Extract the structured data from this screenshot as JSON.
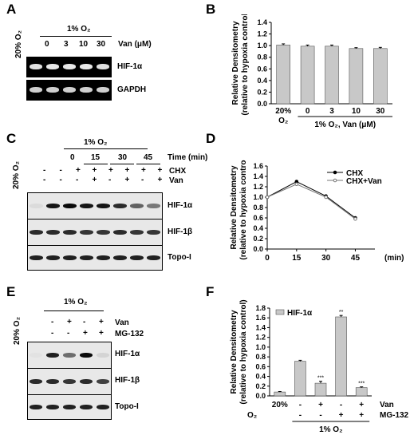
{
  "panels": {
    "A": {
      "letter": "A",
      "o2_20": "20% O₂",
      "o2_1": "1% O₂",
      "lane_values": [
        "0",
        "3",
        "10",
        "30"
      ],
      "treatment_label": "Van (μM)",
      "bands": [
        "HIF-1α",
        "GAPDH"
      ]
    },
    "B": {
      "letter": "B",
      "chart_data": {
        "type": "bar",
        "categories": [
          "20% O₂",
          "0",
          "3",
          "10",
          "30"
        ],
        "values": [
          1.01,
          0.99,
          0.99,
          0.95,
          0.95
        ],
        "errors": [
          0.02,
          0.02,
          0.02,
          0.015,
          0.02
        ],
        "ylabel": "Relative Densitometry (relative to hypoxia control)",
        "group_label": "1% O₂, Van (μM)",
        "ylim": [
          0,
          1.4
        ],
        "yticks": [
          "0.0",
          "0.2",
          "0.4",
          "0.6",
          "0.8",
          "1.0",
          "1.2",
          "1.4"
        ]
      }
    },
    "C": {
      "letter": "C",
      "o2_20": "20% O₂",
      "o2_1": "1% O₂",
      "time_values": [
        "0",
        "15",
        "30",
        "45"
      ],
      "time_label": "Time (min)",
      "row1_label": "CHX",
      "row2_label": "Van",
      "row1_signs": [
        "-",
        "-",
        "+",
        "+",
        "+",
        "+",
        "+",
        "+"
      ],
      "row2_signs": [
        "-",
        "-",
        "-",
        "+",
        "-",
        "+",
        "-",
        "+"
      ],
      "bands": [
        "HIF-1α",
        "HIF-1β",
        "Topo-I"
      ]
    },
    "D": {
      "letter": "D",
      "chart_data": {
        "type": "line",
        "x": [
          0,
          15,
          30,
          45
        ],
        "series": [
          {
            "name": "CHX",
            "values": [
              1.0,
              1.3,
              1.02,
              0.6
            ]
          },
          {
            "name": "CHX+Van",
            "values": [
              1.0,
              1.25,
              1.0,
              0.58
            ]
          }
        ],
        "ylabel": "Relative Densitometry (relative to hypoxia control)",
        "xunit": "(min)",
        "ylim": [
          0,
          1.6
        ],
        "yticks": [
          "0.0",
          "0.2",
          "0.4",
          "0.6",
          "0.8",
          "1.0",
          "1.2",
          "1.4",
          "1.6"
        ],
        "xticks": [
          "0",
          "15",
          "30",
          "45"
        ]
      }
    },
    "E": {
      "letter": "E",
      "o2_20": "20% O₂",
      "o2_1": "1% O₂",
      "row1_label": "Van",
      "row2_label": "MG-132",
      "row1_signs": [
        "-",
        "+",
        "-",
        "+"
      ],
      "row2_signs": [
        "-",
        "-",
        "+",
        "+"
      ],
      "bands": [
        "HIF-1α",
        "HIF-1β",
        "Topo-I"
      ]
    },
    "F": {
      "letter": "F",
      "chart_data": {
        "type": "bar",
        "categories": [
          "20%",
          "-/-",
          "+/-",
          "-/+",
          "+/+"
        ],
        "series": [
          {
            "name": "HIF-1α",
            "values": [
              0.08,
              0.71,
              0.26,
              1.62,
              0.17
            ]
          }
        ],
        "errors": [
          0.01,
          0.02,
          0.04,
          0.03,
          0.015
        ],
        "stars": [
          "",
          "",
          "***",
          "**",
          "***"
        ],
        "ylabel": "Relative Densitometry (relative to hypoxia control)",
        "ylim": [
          0,
          1.8
        ],
        "yticks": [
          "0.0",
          "0.2",
          "0.4",
          "0.6",
          "0.8",
          "1.0",
          "1.2",
          "1.4",
          "1.6",
          "1.8"
        ],
        "o2_row_label": "O₂",
        "o2_first": "20%",
        "van_signs": [
          "-",
          "+",
          "-",
          "+"
        ],
        "mg_signs": [
          "-",
          "-",
          "+",
          "+"
        ],
        "van_label": "Van",
        "mg_label": "MG-132",
        "group_label": "1% O₂"
      }
    }
  }
}
